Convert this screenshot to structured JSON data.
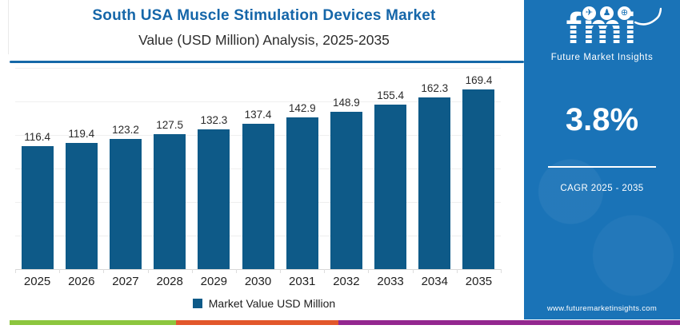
{
  "header": {
    "title_line1": "South USA Muscle Stimulation Devices Market",
    "title_line2": "Value (USD Million) Analysis, 2025-2035"
  },
  "chart_data": {
    "type": "bar",
    "title": "South USA Muscle Stimulation Devices Market Value (USD Million) Analysis, 2025-2035",
    "categories": [
      "2025",
      "2026",
      "2027",
      "2028",
      "2029",
      "2030",
      "2031",
      "2032",
      "2033",
      "2034",
      "2035"
    ],
    "values": [
      116.4,
      119.4,
      123.2,
      127.5,
      132.3,
      137.4,
      142.9,
      148.9,
      155.4,
      162.3,
      169.4
    ],
    "series_label": "Market Value USD Million",
    "xlabel": "",
    "ylabel": "",
    "ylim": [
      0,
      190
    ],
    "grid": "horizontal",
    "legend_position": "bottom",
    "bar_color": "#0e5a88",
    "data_labels": true
  },
  "sidebar": {
    "logo_text": "fmi",
    "logo_subtext": "Future Market Insights",
    "logo_icons": [
      {
        "name": "paper-plane-icon",
        "glyph": "✈"
      },
      {
        "name": "people-icon",
        "glyph": "♟"
      },
      {
        "name": "globe-icon",
        "glyph": "⊕"
      }
    ],
    "cagr_value": "3.8%",
    "cagr_label": "CAGR 2025 - 2035",
    "website": "www.futuremarketinsights.com",
    "bg_color": "#1a73b7"
  },
  "footer_stripe": {
    "segments": [
      {
        "name": "green",
        "color": "#8cc63e"
      },
      {
        "name": "orange",
        "color": "#e2572b"
      },
      {
        "name": "purple",
        "color": "#93278f"
      }
    ]
  },
  "colors": {
    "title_blue": "#1566a9",
    "bar_blue": "#0e5a88",
    "sidebar_blue": "#1a73b7"
  }
}
